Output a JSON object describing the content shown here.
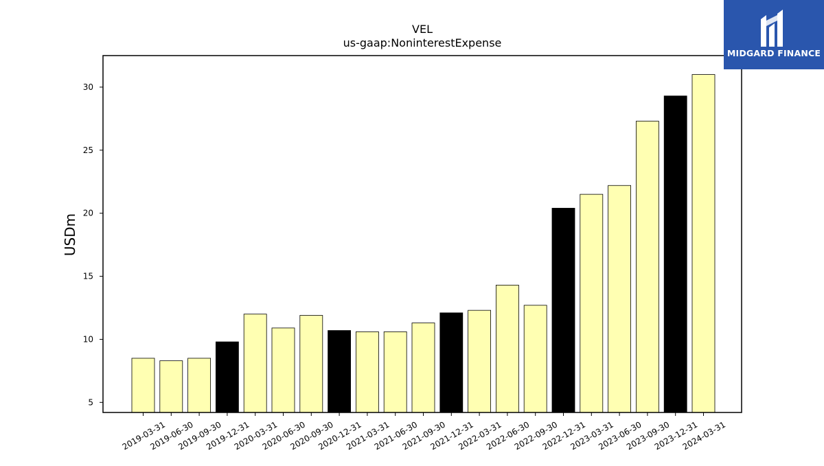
{
  "brand": {
    "name": "MIDGARD FINANCE",
    "background": "#2a56ad",
    "icon": "midgard-m-logo-icon"
  },
  "chart_data": {
    "type": "bar",
    "title": "VEL",
    "subtitle": "us-gaap:NoninterestExpense",
    "xlabel": "",
    "ylabel": "USDm",
    "ylim": [
      4.2,
      32.5
    ],
    "yticks": [
      5,
      10,
      15,
      20,
      25,
      30
    ],
    "grid": false,
    "colors": {
      "quarter": "#ffffb2",
      "year_end": "#000000",
      "edge": "#000000"
    },
    "categories": [
      "2019-03-31",
      "2019-06-30",
      "2019-09-30",
      "2019-12-31",
      "2020-03-31",
      "2020-06-30",
      "2020-09-30",
      "2020-12-31",
      "2021-03-31",
      "2021-06-30",
      "2021-09-30",
      "2021-12-31",
      "2022-03-31",
      "2022-06-30",
      "2022-09-30",
      "2022-12-31",
      "2023-03-31",
      "2023-06-30",
      "2023-09-30",
      "2023-12-31",
      "2024-03-31"
    ],
    "values": [
      8.5,
      8.3,
      8.5,
      9.8,
      12.0,
      10.9,
      11.9,
      10.7,
      10.6,
      10.6,
      11.3,
      12.1,
      12.3,
      14.3,
      12.7,
      20.4,
      21.5,
      22.2,
      27.3,
      29.3,
      31.0
    ],
    "year_end": [
      false,
      false,
      false,
      true,
      false,
      false,
      false,
      true,
      false,
      false,
      false,
      true,
      false,
      false,
      false,
      true,
      false,
      false,
      false,
      true,
      false
    ]
  }
}
